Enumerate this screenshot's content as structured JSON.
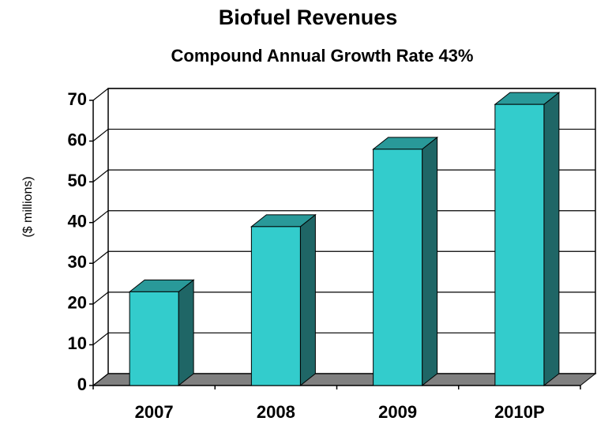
{
  "chart_data": {
    "type": "bar3d",
    "title": "Biofuel Revenues",
    "subtitle": "Compound Annual Growth Rate 43%",
    "y_label": "($ millions)",
    "categories": [
      "2007",
      "2008",
      "2009",
      "2010P"
    ],
    "values": [
      23,
      39,
      58,
      69
    ],
    "color": "#33cccc",
    "ylim": [
      0,
      70
    ],
    "yticks": [
      0,
      10,
      20,
      30,
      40,
      50,
      60,
      70
    ],
    "grid": true
  }
}
